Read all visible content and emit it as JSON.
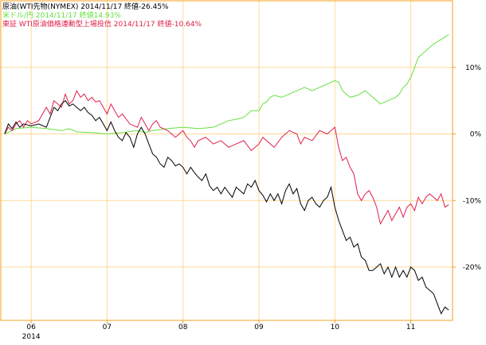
{
  "chart_data": {
    "type": "line",
    "title": "",
    "xlabel": "",
    "ylabel": "",
    "ylim": [
      -28,
      20
    ],
    "x_range_month": [
      5.6,
      11.55
    ],
    "grid": true,
    "grid_color": "#FFD89A",
    "frame_color": "#F0A020",
    "y_ticks": [
      10,
      0,
      -10,
      -20
    ],
    "y_tick_labels": [
      "10%",
      "0%",
      "-10%",
      "-20%"
    ],
    "x_ticks": [
      6,
      7,
      8,
      9,
      10,
      11
    ],
    "x_tick_labels": [
      "06",
      "07",
      "08",
      "09",
      "10",
      "11"
    ],
    "year_label": "2014",
    "series": [
      {
        "name": "原油(WTI先物(NYMEX)",
        "legend_text": "原油(WTI先物(NYMEX) 2014/11/17 終値-26.45%",
        "color": "#000000",
        "x": [
          5.65,
          5.7,
          5.75,
          5.8,
          5.85,
          5.9,
          6.0,
          6.1,
          6.2,
          6.3,
          6.35,
          6.4,
          6.45,
          6.5,
          6.55,
          6.6,
          6.65,
          6.7,
          6.75,
          6.8,
          6.85,
          6.9,
          6.95,
          7.0,
          7.05,
          7.1,
          7.15,
          7.2,
          7.25,
          7.3,
          7.35,
          7.4,
          7.45,
          7.5,
          7.55,
          7.6,
          7.65,
          7.7,
          7.75,
          7.8,
          7.85,
          7.9,
          7.95,
          8.0,
          8.05,
          8.1,
          8.15,
          8.2,
          8.25,
          8.3,
          8.35,
          8.4,
          8.45,
          8.5,
          8.55,
          8.6,
          8.65,
          8.7,
          8.75,
          8.8,
          8.85,
          8.9,
          8.95,
          9.0,
          9.05,
          9.1,
          9.15,
          9.2,
          9.25,
          9.3,
          9.35,
          9.4,
          9.45,
          9.5,
          9.55,
          9.6,
          9.65,
          9.7,
          9.75,
          9.8,
          9.85,
          9.9,
          9.95,
          10.0,
          10.05,
          10.1,
          10.15,
          10.2,
          10.25,
          10.3,
          10.35,
          10.4,
          10.45,
          10.5,
          10.55,
          10.6,
          10.65,
          10.7,
          10.75,
          10.8,
          10.85,
          10.9,
          10.95,
          11.0,
          11.05,
          11.1,
          11.15,
          11.2,
          11.25,
          11.3,
          11.35,
          11.4,
          11.45,
          11.5
        ],
        "values": [
          0,
          1.5,
          0.8,
          1.8,
          1.0,
          1.5,
          1.2,
          1.5,
          1.0,
          4.0,
          3.5,
          4.5,
          5.0,
          4.2,
          4.5,
          4.0,
          3.5,
          4.0,
          3.2,
          2.8,
          2.0,
          2.5,
          1.5,
          0.5,
          1.8,
          0.5,
          -0.5,
          -1.0,
          0.2,
          -0.5,
          -2.0,
          0,
          1.0,
          0,
          -1.5,
          -3.0,
          -3.5,
          -4.5,
          -5.0,
          -3.5,
          -4.0,
          -4.8,
          -4.5,
          -5.0,
          -6.0,
          -5.0,
          -5.8,
          -6.5,
          -7.0,
          -6.0,
          -7.8,
          -8.5,
          -8.0,
          -9.0,
          -8.0,
          -8.8,
          -9.5,
          -8.0,
          -8.5,
          -9.0,
          -7.5,
          -8.0,
          -7.0,
          -8.5,
          -9.2,
          -10.2,
          -9.0,
          -10.0,
          -9.0,
          -10.5,
          -8.5,
          -7.5,
          -9.0,
          -8.2,
          -10.5,
          -11.5,
          -10.0,
          -9.5,
          -10.5,
          -11.0,
          -10.0,
          -9.5,
          -8.0,
          -11.0,
          -13.0,
          -14.5,
          -16.0,
          -15.5,
          -17.0,
          -16.5,
          -18.5,
          -19.0,
          -20.5,
          -20.5,
          -20.0,
          -19.5,
          -21.0,
          -20.0,
          -21.5,
          -20.0,
          -21.5,
          -20.5,
          -21.5,
          -20.0,
          -20.5,
          -22.0,
          -21.5,
          -23.0,
          -23.5,
          -24.0,
          -25.5,
          -27.0,
          -26.0,
          -26.45
        ]
      },
      {
        "name": "米ドル/円",
        "legend_text": "米ドル/円 2014/11/17 終値14.93%",
        "color": "#66E040",
        "x": [
          5.65,
          5.8,
          6.0,
          6.2,
          6.4,
          6.5,
          6.6,
          6.8,
          7.0,
          7.2,
          7.4,
          7.5,
          7.6,
          7.8,
          8.0,
          8.2,
          8.4,
          8.5,
          8.6,
          8.7,
          8.8,
          8.9,
          9.0,
          9.05,
          9.1,
          9.15,
          9.2,
          9.3,
          9.4,
          9.5,
          9.6,
          9.7,
          9.8,
          9.9,
          10.0,
          10.05,
          10.1,
          10.2,
          10.3,
          10.4,
          10.5,
          10.6,
          10.7,
          10.8,
          10.85,
          10.9,
          10.95,
          11.0,
          11.05,
          11.1,
          11.15,
          11.2,
          11.3,
          11.4,
          11.5
        ],
        "values": [
          0,
          0.8,
          1.0,
          0.8,
          0.5,
          0.8,
          0.3,
          0.2,
          0,
          0.2,
          0.5,
          0.2,
          0.5,
          0.8,
          1.0,
          0.8,
          1.0,
          1.5,
          2.0,
          2.2,
          2.5,
          3.5,
          3.5,
          4.5,
          4.8,
          5.5,
          5.8,
          5.5,
          6.0,
          6.5,
          7.0,
          6.5,
          7.0,
          7.5,
          8.0,
          7.8,
          6.5,
          5.5,
          5.8,
          6.5,
          5.5,
          4.5,
          5.0,
          5.5,
          6.0,
          7.0,
          7.5,
          8.5,
          10.0,
          11.5,
          12.0,
          12.5,
          13.5,
          14.2,
          14.93
        ]
      },
      {
        "name": "東証 WTI原油価格連動型上場投信",
        "legend_text": "東証 WTI原油価格連動型上場投信 2014/11/17 終値-10.64%",
        "color": "#E0204A",
        "x": [
          5.65,
          5.7,
          5.75,
          5.8,
          5.85,
          5.9,
          5.95,
          6.0,
          6.1,
          6.2,
          6.25,
          6.3,
          6.35,
          6.4,
          6.45,
          6.5,
          6.55,
          6.6,
          6.65,
          6.7,
          6.75,
          6.8,
          6.85,
          6.9,
          6.95,
          7.0,
          7.05,
          7.1,
          7.15,
          7.2,
          7.3,
          7.4,
          7.45,
          7.5,
          7.55,
          7.6,
          7.65,
          7.7,
          7.8,
          7.9,
          8.0,
          8.05,
          8.1,
          8.15,
          8.2,
          8.3,
          8.4,
          8.5,
          8.6,
          8.7,
          8.8,
          8.9,
          9.0,
          9.05,
          9.1,
          9.2,
          9.3,
          9.4,
          9.5,
          9.55,
          9.6,
          9.7,
          9.8,
          9.9,
          9.95,
          10.0,
          10.05,
          10.1,
          10.15,
          10.2,
          10.25,
          10.3,
          10.35,
          10.4,
          10.45,
          10.5,
          10.55,
          10.6,
          10.65,
          10.7,
          10.75,
          10.8,
          10.85,
          10.9,
          10.95,
          11.0,
          11.05,
          11.1,
          11.15,
          11.2,
          11.25,
          11.3,
          11.35,
          11.4,
          11.45,
          11.5
        ],
        "values": [
          0,
          1.0,
          0.5,
          1.5,
          2.0,
          1.0,
          2.0,
          1.5,
          2.0,
          4.0,
          3.0,
          5.0,
          4.5,
          4.0,
          6.0,
          4.5,
          5.0,
          6.5,
          5.5,
          6.0,
          5.0,
          5.5,
          4.8,
          5.0,
          4.0,
          3.0,
          4.5,
          3.5,
          2.5,
          3.0,
          1.5,
          1.0,
          2.5,
          1.5,
          0.5,
          1.5,
          2.0,
          1.0,
          0.5,
          -0.5,
          0.5,
          -0.5,
          -1.0,
          -2.0,
          -1.0,
          -0.5,
          -1.5,
          -1.0,
          -2.0,
          -1.5,
          -1.0,
          -2.5,
          -1.5,
          -0.5,
          -1.0,
          -2.0,
          -0.5,
          0.5,
          0.0,
          -1.5,
          -0.5,
          -1.0,
          0.5,
          0.0,
          0.5,
          1.0,
          -2.0,
          -4.0,
          -3.5,
          -5.0,
          -6.0,
          -9.0,
          -10.0,
          -9.0,
          -8.5,
          -9.5,
          -11.0,
          -13.5,
          -12.5,
          -11.5,
          -13.0,
          -12.0,
          -11.0,
          -12.5,
          -11.0,
          -10.5,
          -11.5,
          -9.5,
          -10.5,
          -9.5,
          -9.0,
          -9.5,
          -10.0,
          -9.0,
          -11.0,
          -10.64
        ]
      }
    ]
  }
}
